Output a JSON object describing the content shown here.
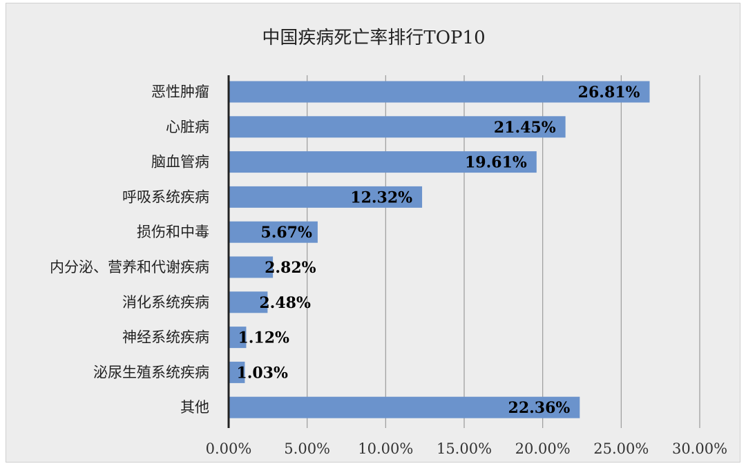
{
  "chart_data": {
    "type": "bar",
    "orientation": "horizontal",
    "title": "中国疾病死亡率排行TOP10",
    "xlabel": "",
    "ylabel": "",
    "categories": [
      "恶性肿瘤",
      "心脏病",
      "脑血管病",
      "呼吸系统疾病",
      "损伤和中毒",
      "内分泌、营养和代谢疾病",
      "消化系统疾病",
      "神经系统疾病",
      "泌尿生殖系统疾病",
      "其他"
    ],
    "values": [
      26.81,
      21.45,
      19.61,
      12.32,
      5.67,
      2.82,
      2.48,
      1.12,
      1.03,
      22.36
    ],
    "data_labels": [
      "26.81%",
      "21.45%",
      "19.61%",
      "12.32%",
      "5.67%",
      "2.82%",
      "2.48%",
      "1.12%",
      "1.03%",
      "22.36%"
    ],
    "xlim": [
      0,
      30
    ],
    "x_ticks": [
      0,
      5,
      10,
      15,
      20,
      25,
      30
    ],
    "x_tick_labels": [
      "0.00%",
      "5.00%",
      "10.00%",
      "15.00%",
      "20.00%",
      "25.00%",
      "30.00%"
    ],
    "grid": "vertical",
    "legend": "none",
    "colors": {
      "bar": "#6b93cc",
      "grid": "#9a9a9a",
      "axis": "#222222",
      "background": "#ededed"
    }
  }
}
